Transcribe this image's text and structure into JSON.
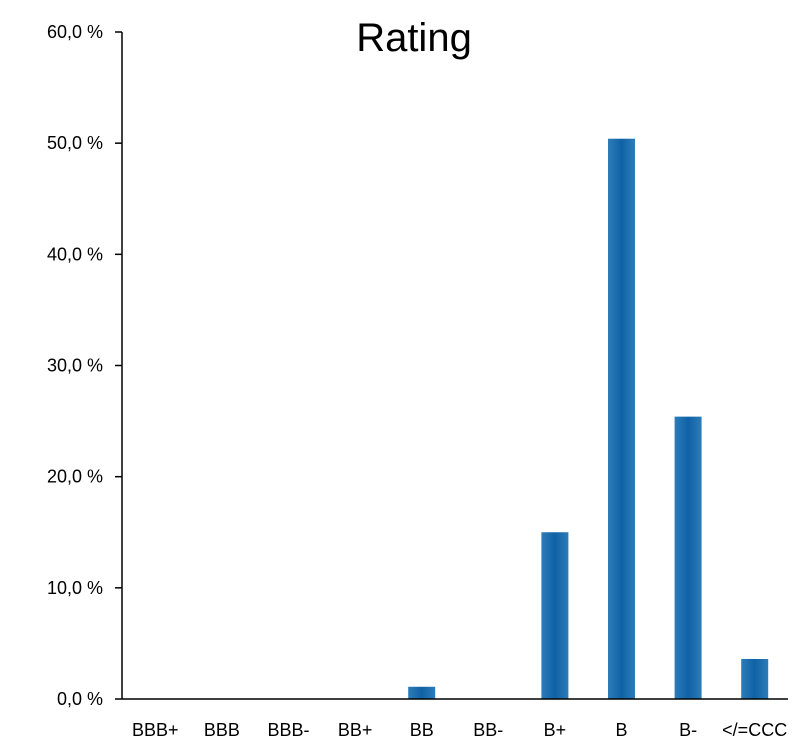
{
  "chart_data": {
    "type": "bar",
    "title": "Rating",
    "xlabel": "",
    "ylabel": "",
    "categories": [
      "BBB+",
      "BBB",
      "BBB-",
      "BB+",
      "BB",
      "BB-",
      "B+",
      "B",
      "B-",
      "</=CCC"
    ],
    "values": [
      0.0,
      0.0,
      0.0,
      0.0,
      1.1,
      0.0,
      15.0,
      50.4,
      25.4,
      3.6
    ],
    "ylim": [
      0,
      60
    ],
    "y_ticks": [
      0,
      10,
      20,
      30,
      40,
      50,
      60
    ],
    "y_tick_labels": [
      "0,0 %",
      "10,0 %",
      "20,0 %",
      "30,0 %",
      "40,0 %",
      "50,0 %",
      "60,0 %"
    ],
    "grid": false,
    "legend": "none",
    "colors": {
      "bar_edge": "#2e7cb8",
      "bar_center": "#0f62a6",
      "axis": "#000000",
      "text": "#000000"
    }
  }
}
